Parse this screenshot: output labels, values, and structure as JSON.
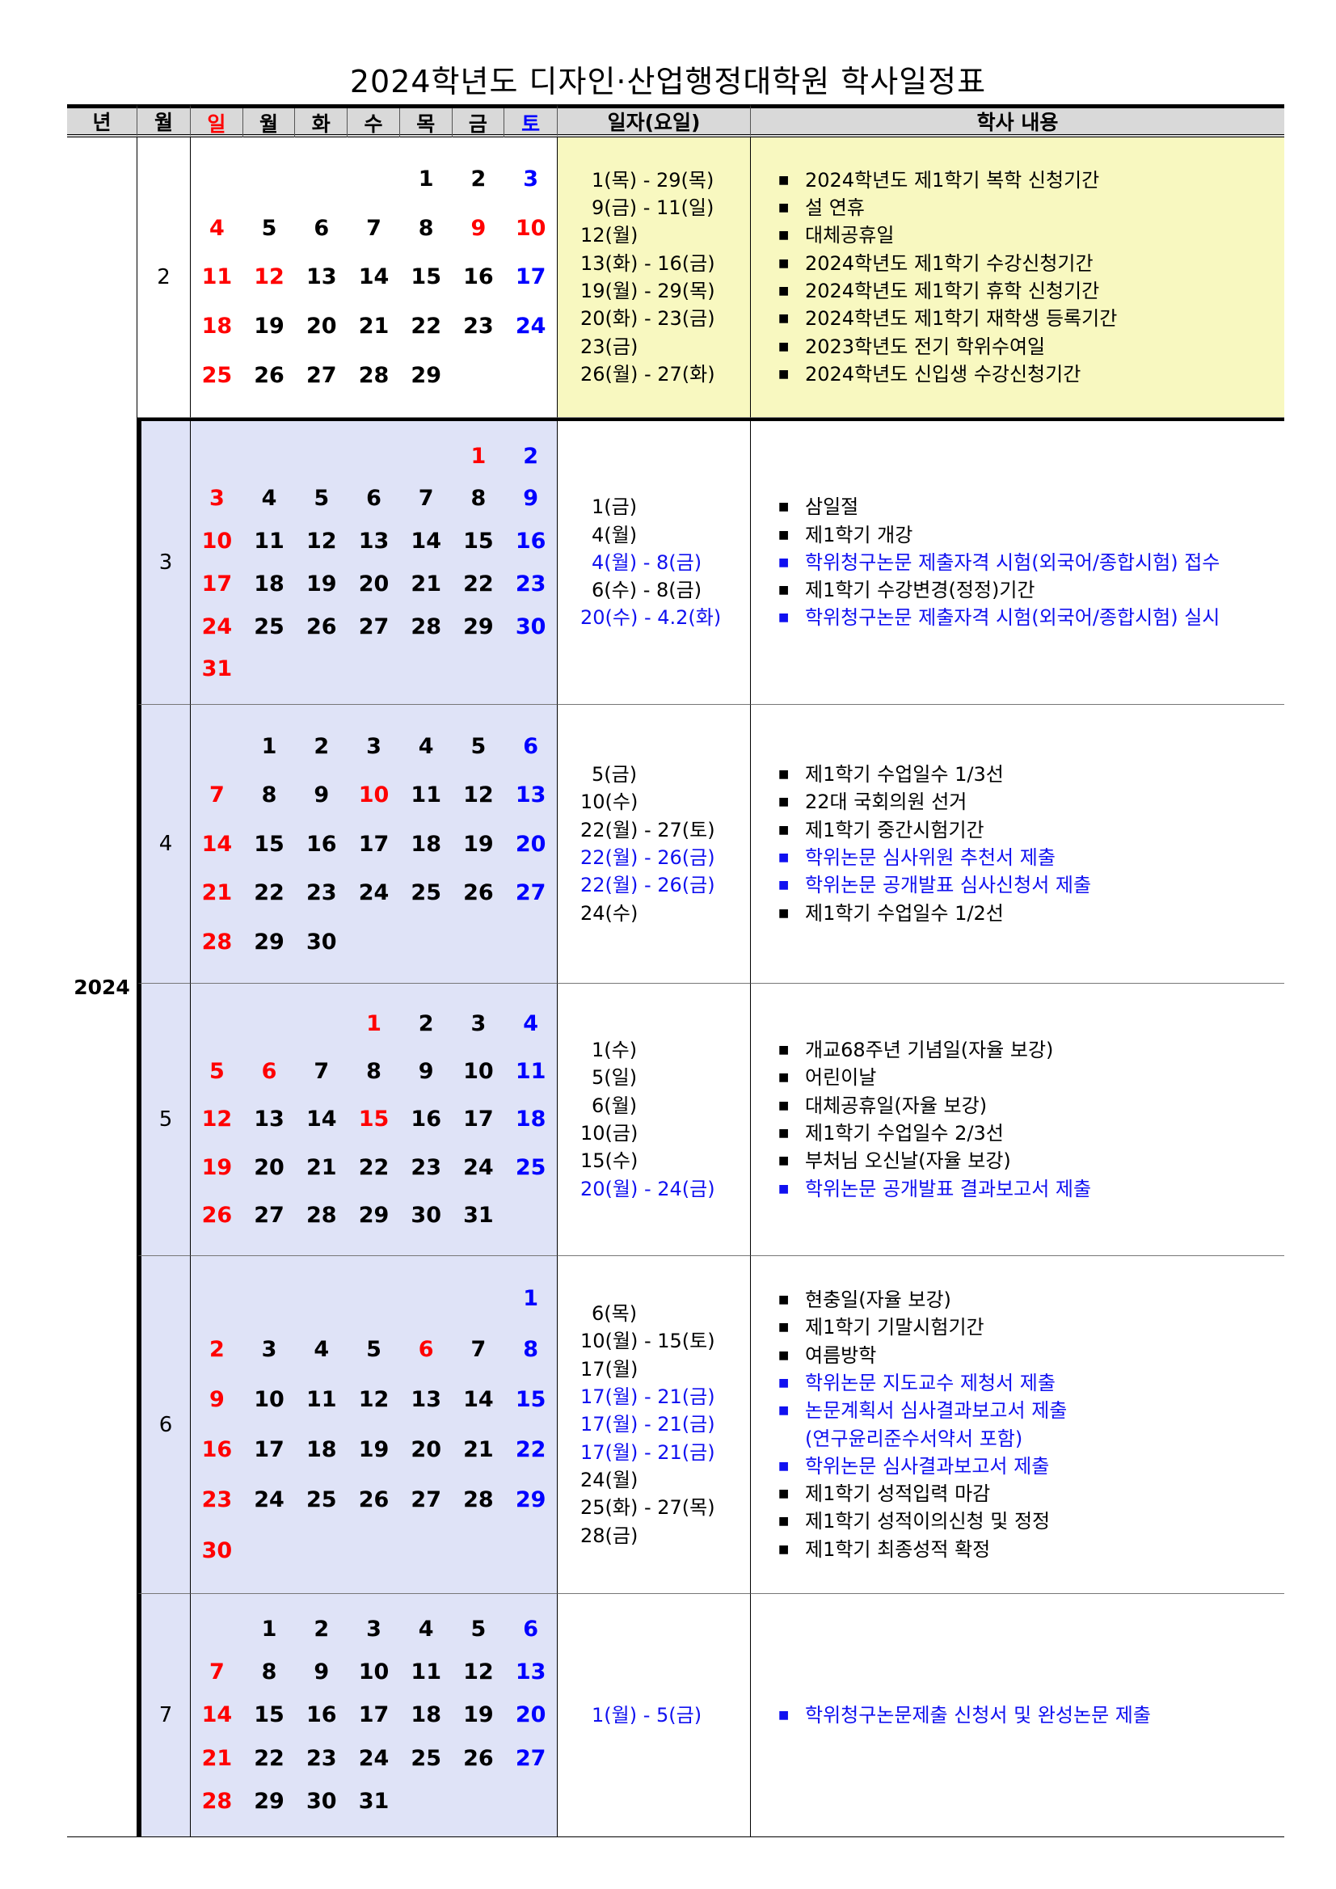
{
  "title": "2024학년도 디자인·산업행정대학원 학사일정표",
  "header": {
    "year": "년",
    "month": "월",
    "weekdays": [
      "일",
      "월",
      "화",
      "수",
      "목",
      "금",
      "토"
    ],
    "date": "일자(요일)",
    "content": "학사 내용"
  },
  "year": "2024",
  "colors": {
    "sunday_holiday": "#ff0000",
    "saturday": "#0000ff",
    "highlight_event": "#1010f0",
    "feb_bg": "#f8f8c0",
    "calendar_bg": "#dfe3f7",
    "header_bg": "#d9d9d9"
  },
  "months": [
    {
      "month": "2",
      "first_weekday": 4,
      "days": 29,
      "holidays": [
        9,
        10,
        12
      ],
      "events": [
        {
          "date": "1(목) - 29(목)",
          "text": "2024학년도 제1학기 복학 신청기간",
          "blue": false
        },
        {
          "date": "9(금) - 11(일)",
          "text": "설 연휴",
          "blue": false
        },
        {
          "date": "12(월)",
          "text": "대체공휴일",
          "blue": false
        },
        {
          "date": "13(화) - 16(금)",
          "text": "2024학년도 제1학기 수강신청기간",
          "blue": false
        },
        {
          "date": "19(월) - 29(목)",
          "text": "2024학년도 제1학기 휴학 신청기간",
          "blue": false
        },
        {
          "date": "20(화) - 23(금)",
          "text": "2024학년도 제1학기 재학생 등록기간",
          "blue": false
        },
        {
          "date": "23(금)",
          "text": "2023학년도 전기 학위수여일",
          "blue": false
        },
        {
          "date": "26(월) - 27(화)",
          "text": "2024학년도 신입생 수강신청기간",
          "blue": false
        }
      ]
    },
    {
      "month": "3",
      "first_weekday": 5,
      "days": 31,
      "holidays": [
        1
      ],
      "events": [
        {
          "date": "1(금)",
          "text": "삼일절",
          "blue": false
        },
        {
          "date": "4(월)",
          "text": "제1학기 개강",
          "blue": false
        },
        {
          "date": "4(월) - 8(금)",
          "text": "학위청구논문 제출자격 시험(외국어/종합시험) 접수",
          "blue": true
        },
        {
          "date": "6(수) - 8(금)",
          "text": "제1학기 수강변경(정정)기간",
          "blue": false
        },
        {
          "date": "20(수) - 4.2(화)",
          "text": "학위청구논문 제출자격 시험(외국어/종합시험) 실시",
          "blue": true
        }
      ]
    },
    {
      "month": "4",
      "first_weekday": 1,
      "days": 30,
      "holidays": [
        10
      ],
      "events": [
        {
          "date": "5(금)",
          "text": "제1학기 수업일수 1/3선",
          "blue": false
        },
        {
          "date": "10(수)",
          "text": "22대 국회의원 선거",
          "blue": false
        },
        {
          "date": "22(월) - 27(토)",
          "text": "제1학기 중간시험기간",
          "blue": false
        },
        {
          "date": "22(월) - 26(금)",
          "text": "학위논문 심사위원 추천서 제출",
          "blue": true
        },
        {
          "date": "22(월) - 26(금)",
          "text": "학위논문 공개발표 심사신청서 제출",
          "blue": true
        },
        {
          "date": "24(수)",
          "text": "제1학기 수업일수 1/2선",
          "blue": false
        }
      ]
    },
    {
      "month": "5",
      "first_weekday": 3,
      "days": 31,
      "holidays": [
        1,
        6,
        15
      ],
      "events": [
        {
          "date": "1(수)",
          "text": "개교68주년 기념일(자율 보강)",
          "blue": false
        },
        {
          "date": "5(일)",
          "text": "어린이날",
          "blue": false
        },
        {
          "date": "6(월)",
          "text": "대체공휴일(자율 보강)",
          "blue": false
        },
        {
          "date": "10(금)",
          "text": "제1학기 수업일수 2/3선",
          "blue": false
        },
        {
          "date": "15(수)",
          "text": "부처님 오신날(자율 보강)",
          "blue": false
        },
        {
          "date": "20(월) - 24(금)",
          "text": "학위논문 공개발표 결과보고서 제출",
          "blue": true
        }
      ]
    },
    {
      "month": "6",
      "first_weekday": 6,
      "days": 30,
      "holidays": [
        6
      ],
      "events": [
        {
          "date": "6(목)",
          "text": "현충일(자율 보강)",
          "blue": false
        },
        {
          "date": "10(월) - 15(토)",
          "text": "제1학기 기말시험기간",
          "blue": false
        },
        {
          "date": "17(월)",
          "text": "여름방학",
          "blue": false
        },
        {
          "date": "17(월) - 21(금)",
          "text": "학위논문 지도교수 제청서 제출",
          "blue": true
        },
        {
          "date": "17(월) - 21(금)",
          "text": "논문계획서 심사결과보고서 제출",
          "cont": "(연구윤리준수서약서 포함)",
          "blue": true
        },
        {
          "date": "17(월) - 21(금)",
          "text": "학위논문 심사결과보고서 제출",
          "blue": true
        },
        {
          "date": "24(월)",
          "text": "제1학기 성적입력 마감",
          "blue": false
        },
        {
          "date": "25(화) - 27(목)",
          "text": "제1학기 성적이의신청 및 정정",
          "blue": false
        },
        {
          "date": "28(금)",
          "text": "제1학기 최종성적 확정",
          "blue": false
        }
      ]
    },
    {
      "month": "7",
      "first_weekday": 1,
      "days": 31,
      "holidays": [],
      "events": [
        {
          "date": "1(월) - 5(금)",
          "text": "학위청구논문제출 신청서 및 완성논문 제출",
          "blue": true
        }
      ]
    }
  ]
}
